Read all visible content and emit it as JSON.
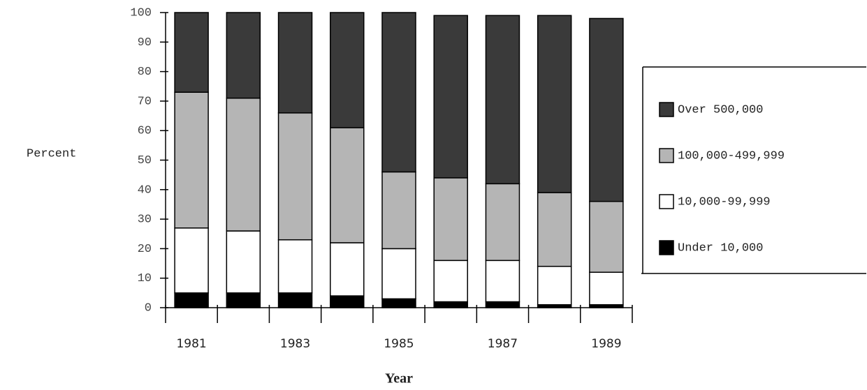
{
  "chart_data": {
    "type": "stacked-bar",
    "x_label": "Year",
    "y_label": "Percent",
    "categories": [
      "1981",
      null,
      "1983",
      null,
      "1985",
      null,
      "1987",
      null,
      "1989"
    ],
    "series": [
      {
        "name": "Under 10,000",
        "color": "#000000",
        "values": [
          5,
          5,
          5,
          4,
          3,
          2,
          2,
          1,
          1
        ]
      },
      {
        "name": "10,000-99,999",
        "color": "#ffffff",
        "values": [
          22,
          21,
          18,
          18,
          17,
          14,
          14,
          13,
          11
        ]
      },
      {
        "name": "100,000-499,999",
        "color": "#b5b5b5",
        "values": [
          46,
          45,
          43,
          39,
          26,
          28,
          26,
          25,
          24
        ]
      },
      {
        "name": "Over 500,000",
        "color": "#3a3a3a",
        "values": [
          27,
          29,
          34,
          39,
          54,
          55,
          57,
          60,
          62
        ]
      }
    ],
    "ylim": [
      0,
      100
    ],
    "yticks": [
      0,
      10,
      20,
      30,
      40,
      50,
      60,
      70,
      80,
      90,
      100
    ]
  }
}
